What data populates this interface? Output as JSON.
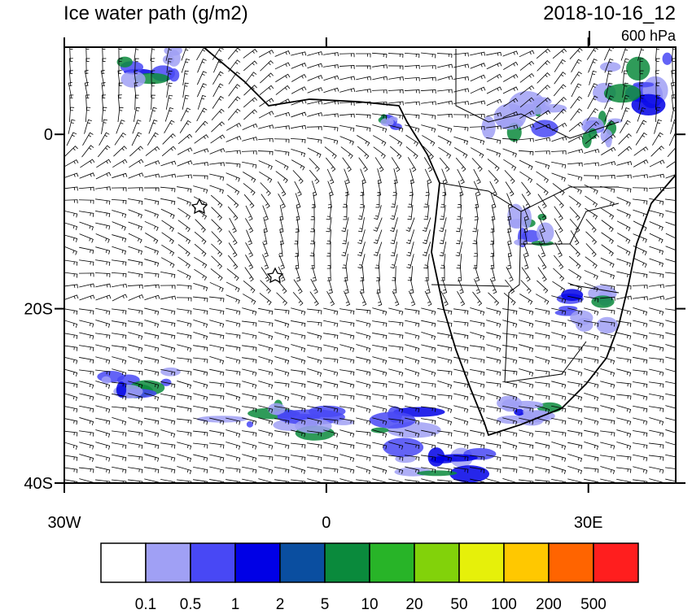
{
  "title": "Ice water path (g/m2)",
  "valid_time": "2018-10-16_12",
  "level": "600 hPa",
  "map": {
    "lonlim": [
      -30,
      40
    ],
    "latlim": [
      -40,
      10
    ],
    "lat_ticks": [
      {
        "value": 0,
        "label": "0"
      },
      {
        "value": -20,
        "label": "20S"
      },
      {
        "value": -40,
        "label": "40S"
      }
    ],
    "lon_ticks": [
      {
        "value": -30,
        "label": "30W"
      },
      {
        "value": 0,
        "label": "0"
      },
      {
        "value": 30,
        "label": "30E"
      }
    ]
  },
  "colorbar": {
    "levels": [
      0.1,
      0.5,
      1,
      2,
      5,
      10,
      20,
      50,
      100,
      200,
      500
    ],
    "colors": [
      "#ffffff",
      "#a0a0f5",
      "#4848f5",
      "#0000e6",
      "#0a4ea0",
      "#0a8a3c",
      "#28b428",
      "#82d20a",
      "#e6f00a",
      "#ffc800",
      "#ff6400",
      "#ff1e1e"
    ]
  }
}
